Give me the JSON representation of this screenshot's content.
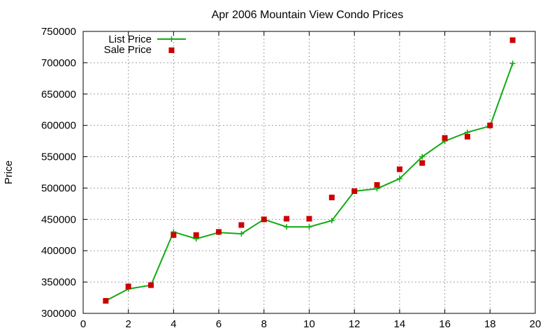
{
  "chart_data": {
    "type": "scatter",
    "title": "Apr 2006 Mountain View Condo Prices",
    "xlabel": "",
    "ylabel": "Price",
    "xlim": [
      0,
      20
    ],
    "ylim": [
      300000,
      750000
    ],
    "xticks": [
      0,
      2,
      4,
      6,
      8,
      10,
      12,
      14,
      16,
      18,
      20
    ],
    "yticks": [
      300000,
      350000,
      400000,
      450000,
      500000,
      550000,
      600000,
      650000,
      700000,
      750000
    ],
    "grid": true,
    "legend_position": "top-left",
    "series": [
      {
        "name": "List Price",
        "style": "line-with-plus-markers",
        "color": "#11aa11",
        "x": [
          1,
          2,
          3,
          4,
          5,
          6,
          7,
          8,
          9,
          10,
          11,
          12,
          13,
          14,
          15,
          16,
          17,
          18,
          19
        ],
        "y": [
          320000,
          339000,
          345000,
          430000,
          419000,
          429000,
          427000,
          450000,
          438000,
          438000,
          448000,
          495000,
          499000,
          515000,
          550000,
          575000,
          589000,
          599000,
          699000
        ]
      },
      {
        "name": "Sale Price",
        "style": "square-markers",
        "color": "#cc0000",
        "x": [
          1,
          2,
          3,
          4,
          5,
          6,
          7,
          8,
          9,
          10,
          11,
          12,
          13,
          14,
          15,
          16,
          17,
          18,
          19
        ],
        "y": [
          320000,
          343000,
          345000,
          425000,
          425000,
          430000,
          441000,
          450000,
          451000,
          451000,
          485000,
          495000,
          505000,
          530000,
          540000,
          580000,
          582000,
          600000,
          736000
        ]
      }
    ]
  }
}
